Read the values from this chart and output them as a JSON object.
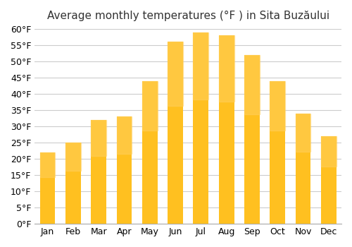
{
  "title": "Average monthly temperatures (°F ) in Sita Buzăului",
  "months": [
    "Jan",
    "Feb",
    "Mar",
    "Apr",
    "May",
    "Jun",
    "Jul",
    "Aug",
    "Sep",
    "Oct",
    "Nov",
    "Dec"
  ],
  "values": [
    22,
    25,
    32,
    33,
    44,
    56,
    59,
    58,
    52,
    44,
    34,
    27
  ],
  "bar_color_top": "#FFC020",
  "bar_color_bottom": "#FFA000",
  "background_color": "#ffffff",
  "grid_color": "#cccccc",
  "ylim": [
    0,
    60
  ],
  "yticks": [
    0,
    5,
    10,
    15,
    20,
    25,
    30,
    35,
    40,
    45,
    50,
    55,
    60
  ],
  "ytick_labels": [
    "0°F",
    "5°F",
    "10°F",
    "15°F",
    "20°F",
    "25°F",
    "30°F",
    "35°F",
    "40°F",
    "45°F",
    "50°F",
    "55°F",
    "60°F"
  ],
  "title_fontsize": 11,
  "tick_fontsize": 9
}
